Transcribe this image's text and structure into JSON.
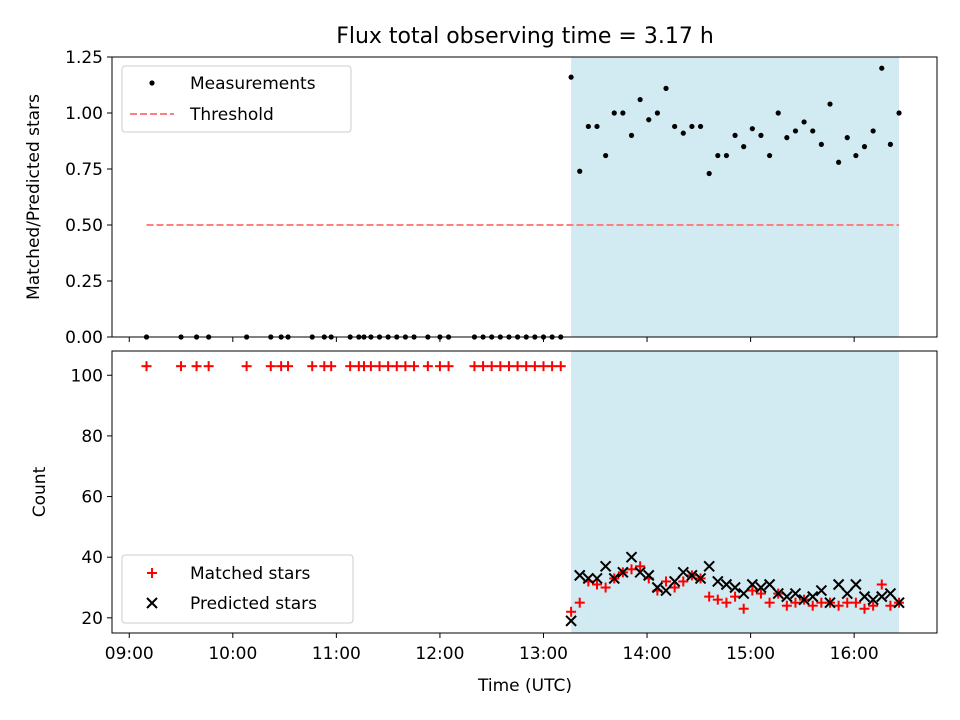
{
  "figure": {
    "title": "Flux total observing time = 3.17 h",
    "xlabel": "Time (UTC)",
    "x_tick_labels": [
      "09:00",
      "10:00",
      "11:00",
      "12:00",
      "13:00",
      "14:00",
      "15:00",
      "16:00"
    ],
    "observing_window": {
      "start": "13:16",
      "end": "16:26",
      "color": "#add8e6"
    },
    "colors": {
      "measurements": "#000000",
      "threshold": "#ff7f7f",
      "matched": "#ff0000",
      "predicted": "#000000"
    }
  },
  "chart_data": [
    {
      "type": "scatter",
      "ylabel": "Matched/Predicted stars",
      "ylim": [
        0,
        1.25
      ],
      "y_ticks": [
        "0.00",
        "0.25",
        "0.50",
        "0.75",
        "1.00",
        "1.25"
      ],
      "xlim": [
        "08:50",
        "16:48"
      ],
      "grid": false,
      "legend": "top-left",
      "series": [
        {
          "name": "Measurements",
          "marker": "dot",
          "x": [
            "09:10",
            "09:30",
            "09:39",
            "09:46",
            "10:08",
            "10:22",
            "10:28",
            "10:32",
            "10:46",
            "10:53",
            "10:57",
            "11:08",
            "11:13",
            "11:16",
            "11:20",
            "11:25",
            "11:30",
            "11:35",
            "11:40",
            "11:45",
            "11:53",
            "12:00",
            "12:05",
            "12:20",
            "12:25",
            "12:30",
            "12:35",
            "12:40",
            "12:45",
            "12:50",
            "12:55",
            "13:00",
            "13:05",
            "13:10",
            "13:16",
            "13:21",
            "13:26",
            "13:31",
            "13:36",
            "13:41",
            "13:46",
            "13:51",
            "13:56",
            "14:01",
            "14:06",
            "14:11",
            "14:16",
            "14:21",
            "14:26",
            "14:31",
            "14:36",
            "14:41",
            "14:46",
            "14:51",
            "14:56",
            "15:01",
            "15:06",
            "15:11",
            "15:16",
            "15:21",
            "15:26",
            "15:31",
            "15:36",
            "15:41",
            "15:46",
            "15:51",
            "15:56",
            "16:01",
            "16:06",
            "16:11",
            "16:16",
            "16:21",
            "16:26"
          ],
          "y": [
            0,
            0,
            0,
            0,
            0,
            0,
            0,
            0,
            0,
            0,
            0,
            0,
            0,
            0,
            0,
            0,
            0,
            0,
            0,
            0,
            0,
            0,
            0,
            0,
            0,
            0,
            0,
            0,
            0,
            0,
            0,
            0,
            0,
            0,
            1.16,
            0.74,
            0.94,
            0.94,
            0.81,
            1.0,
            1.0,
            0.9,
            1.06,
            0.97,
            1.0,
            1.11,
            0.94,
            0.91,
            0.94,
            0.94,
            0.73,
            0.81,
            0.81,
            0.9,
            0.85,
            0.93,
            0.9,
            0.81,
            1.0,
            0.89,
            0.92,
            0.96,
            0.92,
            0.86,
            1.04,
            0.78,
            0.89,
            0.81,
            0.85,
            0.92,
            1.2,
            0.86,
            1.0
          ]
        },
        {
          "name": "Threshold",
          "style": "dashed",
          "x": [
            "09:10",
            "16:26"
          ],
          "y": [
            0.5,
            0.5
          ]
        }
      ]
    },
    {
      "type": "scatter",
      "ylabel": "Count",
      "ylim": [
        15,
        108
      ],
      "y_ticks": [
        "20",
        "40",
        "60",
        "80",
        "100"
      ],
      "xlim": [
        "08:50",
        "16:48"
      ],
      "grid": false,
      "legend": "bottom-left",
      "series": [
        {
          "name": "Matched stars",
          "marker": "plus",
          "x": [
            "09:10",
            "09:30",
            "09:39",
            "09:46",
            "10:08",
            "10:22",
            "10:28",
            "10:32",
            "10:46",
            "10:53",
            "10:57",
            "11:08",
            "11:13",
            "11:16",
            "11:20",
            "11:25",
            "11:30",
            "11:35",
            "11:40",
            "11:45",
            "11:53",
            "12:00",
            "12:05",
            "12:20",
            "12:25",
            "12:30",
            "12:35",
            "12:40",
            "12:45",
            "12:50",
            "12:55",
            "13:00",
            "13:05",
            "13:10",
            "13:16",
            "13:21",
            "13:26",
            "13:31",
            "13:36",
            "13:41",
            "13:46",
            "13:51",
            "13:56",
            "14:01",
            "14:06",
            "14:11",
            "14:16",
            "14:21",
            "14:26",
            "14:31",
            "14:36",
            "14:41",
            "14:46",
            "14:51",
            "14:56",
            "15:01",
            "15:06",
            "15:11",
            "15:16",
            "15:21",
            "15:26",
            "15:31",
            "15:36",
            "15:41",
            "15:46",
            "15:51",
            "15:56",
            "16:01",
            "16:06",
            "16:11",
            "16:16",
            "16:21",
            "16:26"
          ],
          "y": [
            103,
            103,
            103,
            103,
            103,
            103,
            103,
            103,
            103,
            103,
            103,
            103,
            103,
            103,
            103,
            103,
            103,
            103,
            103,
            103,
            103,
            103,
            103,
            103,
            103,
            103,
            103,
            103,
            103,
            103,
            103,
            103,
            103,
            103,
            22,
            25,
            32,
            31,
            30,
            33,
            35,
            36,
            37,
            33,
            29,
            32,
            30,
            32,
            34,
            33,
            27,
            26,
            25,
            27,
            23,
            29,
            28,
            25,
            28,
            24,
            25,
            26,
            24,
            25,
            25,
            24,
            25,
            25,
            23,
            24,
            31,
            24,
            25
          ]
        },
        {
          "name": "Predicted stars",
          "marker": "x",
          "x": [
            "13:16",
            "13:21",
            "13:26",
            "13:31",
            "13:36",
            "13:41",
            "13:46",
            "13:51",
            "13:56",
            "14:01",
            "14:06",
            "14:11",
            "14:16",
            "14:21",
            "14:26",
            "14:31",
            "14:36",
            "14:41",
            "14:46",
            "14:51",
            "14:56",
            "15:01",
            "15:06",
            "15:11",
            "15:16",
            "15:21",
            "15:26",
            "15:31",
            "15:36",
            "15:41",
            "15:46",
            "15:51",
            "15:56",
            "16:01",
            "16:06",
            "16:11",
            "16:16",
            "16:21",
            "16:26"
          ],
          "y": [
            19,
            34,
            33,
            33,
            37,
            33,
            35,
            40,
            35,
            34,
            30,
            29,
            32,
            35,
            34,
            33,
            37,
            32,
            31,
            30,
            28,
            31,
            30,
            31,
            28,
            27,
            28,
            26,
            27,
            29,
            25,
            31,
            28,
            31,
            27,
            26,
            27,
            28,
            25
          ]
        }
      ]
    }
  ]
}
